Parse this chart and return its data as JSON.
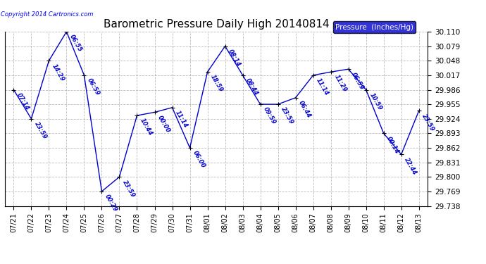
{
  "title": "Barometric Pressure Daily High 20140814",
  "copyright": "Copyright 2014 Cartronics.com",
  "legend_label": "Pressure  (Inches/Hg)",
  "x_labels": [
    "07/21",
    "07/22",
    "07/23",
    "07/24",
    "07/25",
    "07/26",
    "07/27",
    "07/28",
    "07/29",
    "07/30",
    "07/31",
    "08/01",
    "08/02",
    "08/03",
    "08/04",
    "08/05",
    "08/06",
    "08/07",
    "08/08",
    "08/09",
    "08/10",
    "08/11",
    "08/12",
    "08/13"
  ],
  "x_values": [
    0,
    1,
    2,
    3,
    4,
    5,
    6,
    7,
    8,
    9,
    10,
    11,
    12,
    13,
    14,
    15,
    16,
    17,
    18,
    19,
    20,
    21,
    22,
    23
  ],
  "y_values": [
    29.986,
    29.924,
    30.048,
    30.11,
    30.017,
    29.769,
    29.8,
    29.931,
    29.938,
    29.948,
    29.862,
    30.024,
    30.079,
    30.017,
    29.955,
    29.955,
    29.969,
    30.017,
    30.024,
    30.03,
    29.986,
    29.893,
    29.848,
    29.941
  ],
  "time_labels": [
    "07:14",
    "23:59",
    "14:29",
    "06:55",
    "06:59",
    "00:29",
    "23:59",
    "10:44",
    "00:00",
    "11:14",
    "06:00",
    "18:59",
    "08:14",
    "08:44",
    "09:59",
    "23:59",
    "06:44",
    "11:14",
    "11:29",
    "06:59",
    "10:59",
    "00:14",
    "22:44",
    "23:59"
  ],
  "ylim_min": 29.738,
  "ylim_max": 30.11,
  "yticks": [
    29.738,
    29.769,
    29.8,
    29.831,
    29.862,
    29.893,
    29.924,
    29.955,
    29.986,
    30.017,
    30.048,
    30.079,
    30.11
  ],
  "line_color": "#0000CC",
  "marker_color": "#000000",
  "bg_color": "#ffffff",
  "grid_color": "#aaaaaa",
  "legend_bg": "#0000CC",
  "legend_text_color": "#ffffff",
  "fig_width": 6.9,
  "fig_height": 3.75,
  "dpi": 100
}
